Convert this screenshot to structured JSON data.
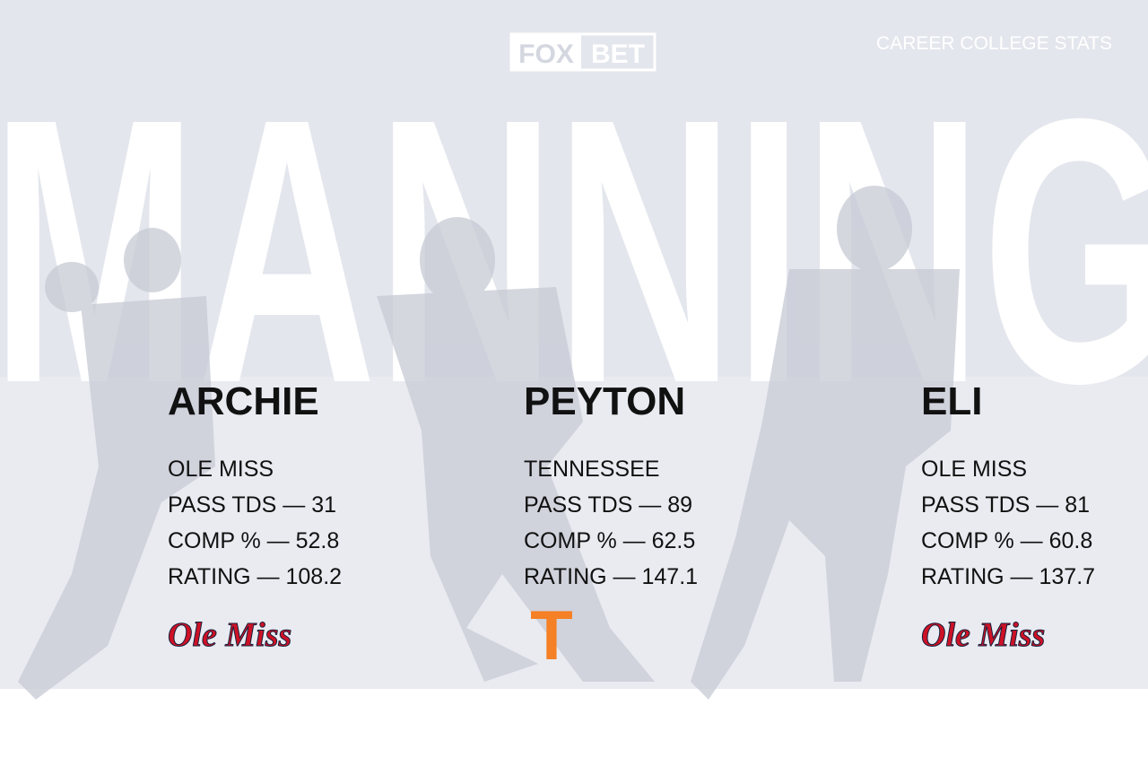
{
  "header": {
    "brand": [
      "FOX",
      "BET"
    ],
    "subtitle": "CAREER COLLEGE STATS",
    "backdrop": "MANNING"
  },
  "players": [
    {
      "name": "ARCHIE",
      "lines": [
        "OLE MISS",
        "PASS TDS — 31",
        "COMP % — 52.8",
        "RATING — 108.2"
      ],
      "logo": "Ole Miss"
    },
    {
      "name": "PEYTON",
      "lines": [
        "TENNESSEE",
        "PASS TDS — 89",
        "COMP % — 62.5",
        "RATING — 147.1"
      ],
      "logo": "T"
    },
    {
      "name": "ELI",
      "lines": [
        "OLE MISS",
        "PASS TDS — 81",
        "COMP % — 60.8",
        "RATING — 137.7"
      ],
      "logo": "Ole Miss"
    }
  ]
}
